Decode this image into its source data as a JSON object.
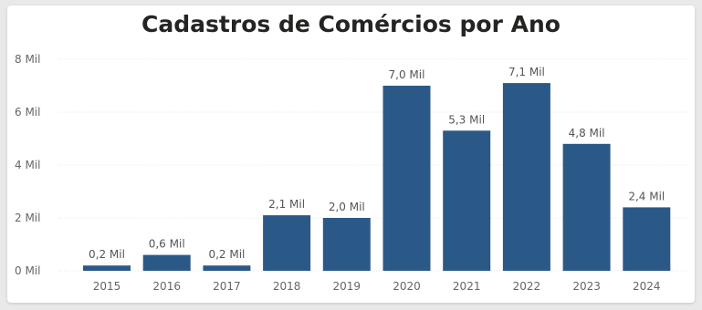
{
  "chart_data": {
    "type": "bar",
    "title": "Cadastros de Comércios por Ano",
    "categories": [
      "2015",
      "2016",
      "2017",
      "2018",
      "2019",
      "2020",
      "2021",
      "2022",
      "2023",
      "2024"
    ],
    "values": [
      0.2,
      0.6,
      0.2,
      2.1,
      2.0,
      7.0,
      5.3,
      7.1,
      4.8,
      2.4
    ],
    "data_labels": [
      "0,2 Mil",
      "0,6 Mil",
      "0,2 Mil",
      "2,1 Mil",
      "2,0 Mil",
      "7,0 Mil",
      "5,3 Mil",
      "7,1 Mil",
      "4,8 Mil",
      "2,4 Mil"
    ],
    "value_unit": "Mil",
    "ylim": [
      0,
      8
    ],
    "yticks": [
      0,
      2,
      4,
      6,
      8
    ],
    "ytick_labels": [
      "0 Mil",
      "2 Mil",
      "4 Mil",
      "6 Mil",
      "8 Mil"
    ],
    "xlabel": "",
    "ylabel": "",
    "grid": true,
    "bar_color": "#2b5987"
  }
}
